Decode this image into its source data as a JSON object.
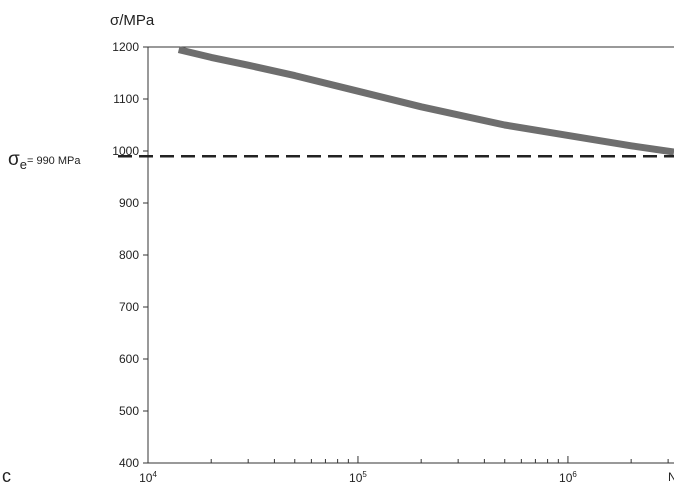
{
  "chart_data": {
    "type": "line",
    "title": "",
    "ylabel": "σ/MPa",
    "xlabel": "N",
    "x_scale": "log",
    "xlim": [
      10000,
      3200000
    ],
    "ylim": [
      400,
      1200
    ],
    "x_ticks": [
      {
        "value": 10000,
        "base": "10",
        "exp": "4"
      },
      {
        "value": 100000,
        "base": "10",
        "exp": "5"
      },
      {
        "value": 1000000,
        "base": "10",
        "exp": "6"
      }
    ],
    "y_ticks": [
      "400",
      "500",
      "600",
      "700",
      "800",
      "900",
      "1000",
      "1100",
      "1200"
    ],
    "grid": false,
    "series": [
      {
        "color": "#6e6e6e",
        "x": [
          14000,
          20000,
          30000,
          50000,
          100000,
          200000,
          500000,
          1000000,
          2000000,
          3200000
        ],
        "y": [
          1195,
          1180,
          1165,
          1145,
          1115,
          1085,
          1050,
          1030,
          1010,
          998
        ]
      }
    ],
    "reference_line": {
      "y": 990,
      "style": "dashed",
      "symbol": "σ",
      "subscript": "e",
      "text": "= 990 MPa"
    },
    "panel_letter": "c"
  }
}
